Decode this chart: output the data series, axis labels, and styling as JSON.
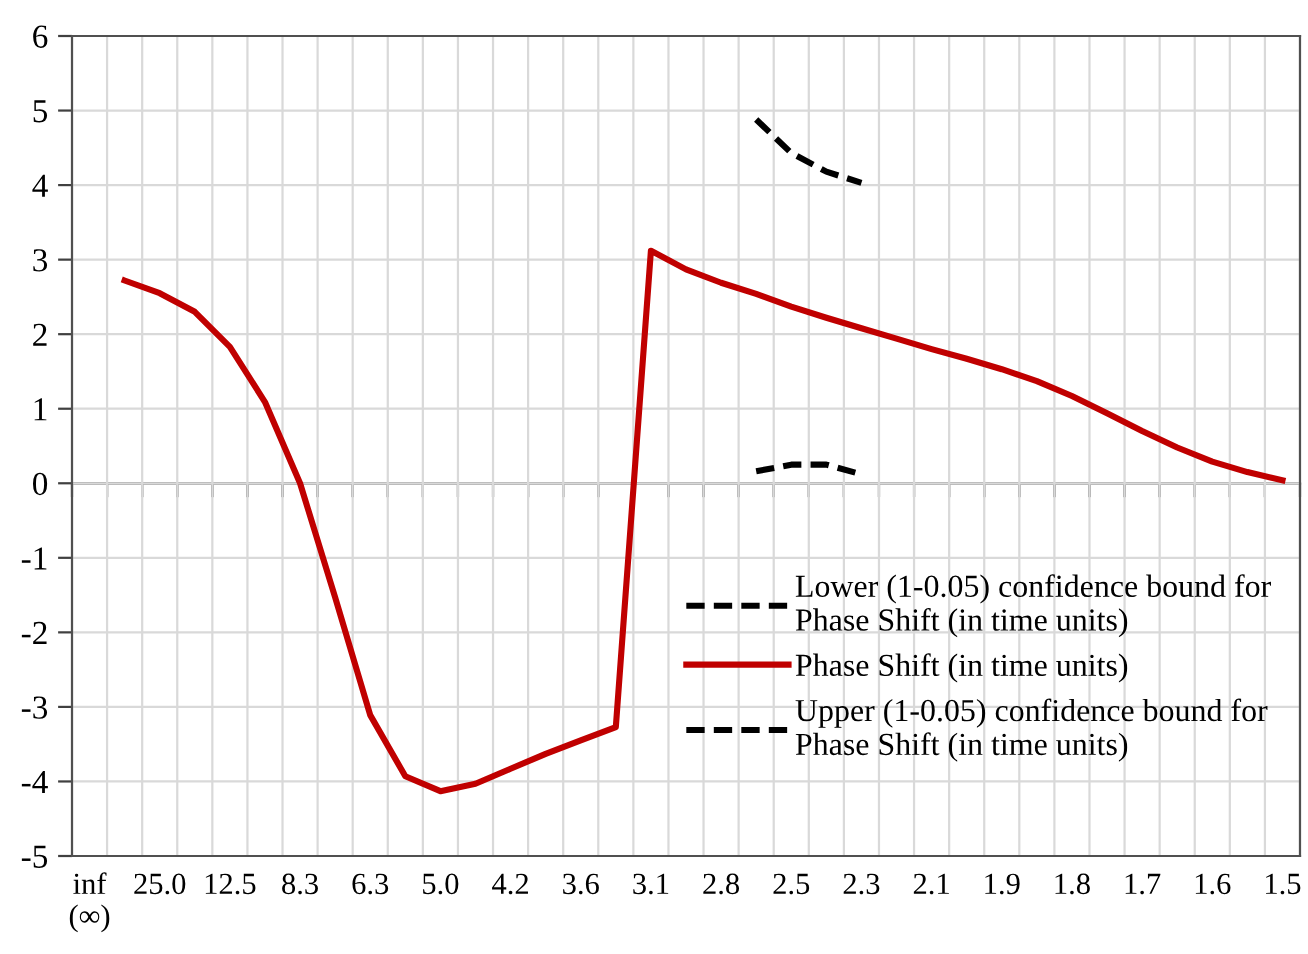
{
  "chart_data": {
    "type": "line",
    "categories": [
      "inf\n(∞)",
      null,
      "25.0",
      null,
      "12.5",
      null,
      "8.3",
      null,
      "6.3",
      null,
      "5.0",
      null,
      "4.2",
      null,
      "3.6",
      null,
      "3.1",
      null,
      "2.8",
      null,
      "2.5",
      null,
      "2.3",
      null,
      "2.1",
      null,
      "1.9",
      null,
      "1.8",
      null,
      "1.7",
      null,
      "1.6",
      null,
      "1.5"
    ],
    "series": [
      {
        "name": "Lower (1-0.05) confidence bound for Phase Shift (in time units)",
        "color": "#000000",
        "line_style": "dashed",
        "values": [
          null,
          null,
          null,
          null,
          null,
          null,
          null,
          null,
          null,
          null,
          null,
          null,
          null,
          null,
          null,
          null,
          null,
          null,
          null,
          0.16,
          0.25,
          0.25,
          0.12,
          null,
          null,
          null,
          null,
          null,
          null,
          null,
          null,
          null,
          null,
          null,
          null
        ]
      },
      {
        "name": "Phase Shift (in time units)",
        "color": "#c00000",
        "line_style": "solid",
        "values": [
          null,
          2.72,
          2.55,
          2.3,
          1.83,
          1.09,
          0.0,
          -1.53,
          -3.11,
          -3.93,
          -4.13,
          -4.03,
          -3.83,
          -3.63,
          -3.45,
          -3.27,
          3.12,
          2.87,
          2.69,
          2.54,
          2.37,
          2.22,
          2.08,
          1.94,
          1.8,
          1.67,
          1.53,
          1.37,
          1.17,
          0.94,
          0.7,
          0.48,
          0.29,
          0.15,
          0.04
        ]
      },
      {
        "name": "Upper (1-0.05) confidence bound for Phase Shift (in time units)",
        "color": "#000000",
        "line_style": "dashed",
        "values": [
          null,
          null,
          null,
          null,
          null,
          null,
          null,
          null,
          null,
          null,
          null,
          null,
          null,
          null,
          null,
          null,
          null,
          null,
          null,
          4.88,
          4.43,
          4.18,
          4.03,
          null,
          null,
          null,
          null,
          null,
          null,
          null,
          null,
          null,
          null,
          null,
          null
        ]
      }
    ],
    "ylim": [
      -5,
      6
    ],
    "yticks": [
      -5,
      -4,
      -3,
      -2,
      -1,
      0,
      1,
      2,
      3,
      4,
      5,
      6
    ],
    "grid": true,
    "legend": "bottom right",
    "marker": "none"
  }
}
